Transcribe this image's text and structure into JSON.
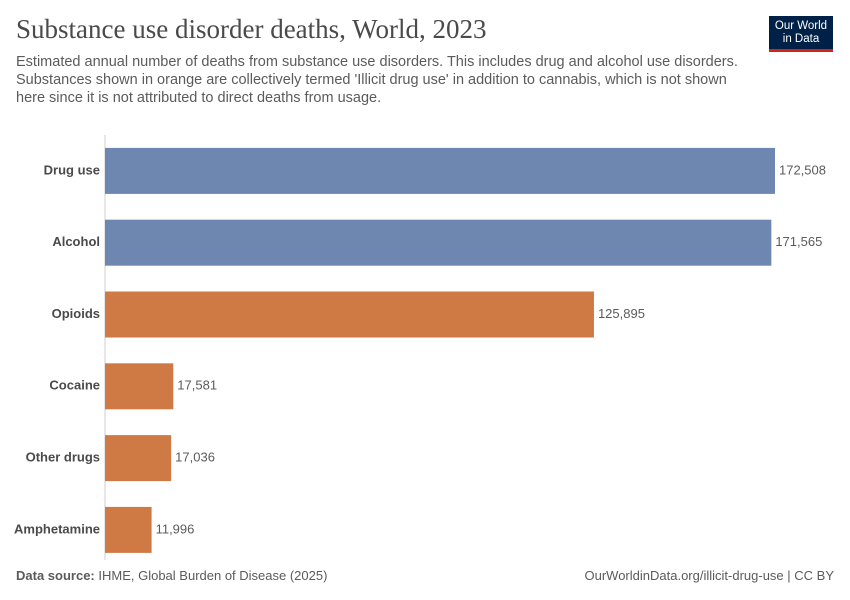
{
  "chart_data": {
    "type": "bar",
    "orientation": "horizontal",
    "title": "Substance use disorder deaths, World, 2023",
    "subtitle": "Estimated annual number of deaths from substance use disorders. This includes drug and alcohol use disorders. Substances shown in orange are collectively termed 'Illicit drug use' in addition to cannabis, which is not shown here since it is not attributed to direct deaths from usage.",
    "categories": [
      "Drug use",
      "Alcohol",
      "Opioids",
      "Cocaine",
      "Other drugs",
      "Amphetamine"
    ],
    "values": [
      172508,
      171565,
      125895,
      17581,
      17036,
      11996
    ],
    "value_labels": [
      "172,508",
      "171,565",
      "125,895",
      "17,581",
      "17,036",
      "11,996"
    ],
    "colors": [
      "#6d87b0",
      "#6d87b0",
      "#cf7a45",
      "#cf7a45",
      "#cf7a45",
      "#cf7a45"
    ]
  },
  "footer": {
    "source_label": "Data source:",
    "source": "IHME, Global Burden of Disease (2025)",
    "url": "OurWorldinData.org/illicit-drug-use | CC BY"
  },
  "logo": {
    "line1": "Our World",
    "line2": "in Data"
  }
}
